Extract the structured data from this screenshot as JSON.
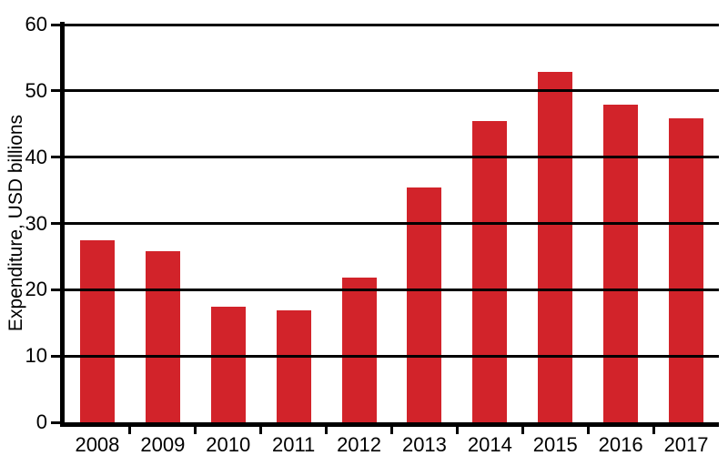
{
  "chart_data": {
    "type": "bar",
    "title": "",
    "xlabel": "",
    "ylabel": "Expenditure, USD billions",
    "categories": [
      "2008",
      "2009",
      "2010",
      "2011",
      "2012",
      "2013",
      "2014",
      "2015",
      "2016",
      "2017"
    ],
    "values": [
      27.5,
      25.8,
      17.4,
      16.9,
      21.8,
      35.4,
      45.4,
      52.8,
      47.9,
      45.8
    ],
    "ylim": [
      0,
      60
    ],
    "yticks": [
      0,
      10,
      20,
      30,
      40,
      50,
      60
    ],
    "legend": "none",
    "grid": "horizontal-major-lines-over-bars",
    "colors": {
      "bar": "#d2232a",
      "axis": "#000000",
      "background": "#ffffff"
    }
  }
}
